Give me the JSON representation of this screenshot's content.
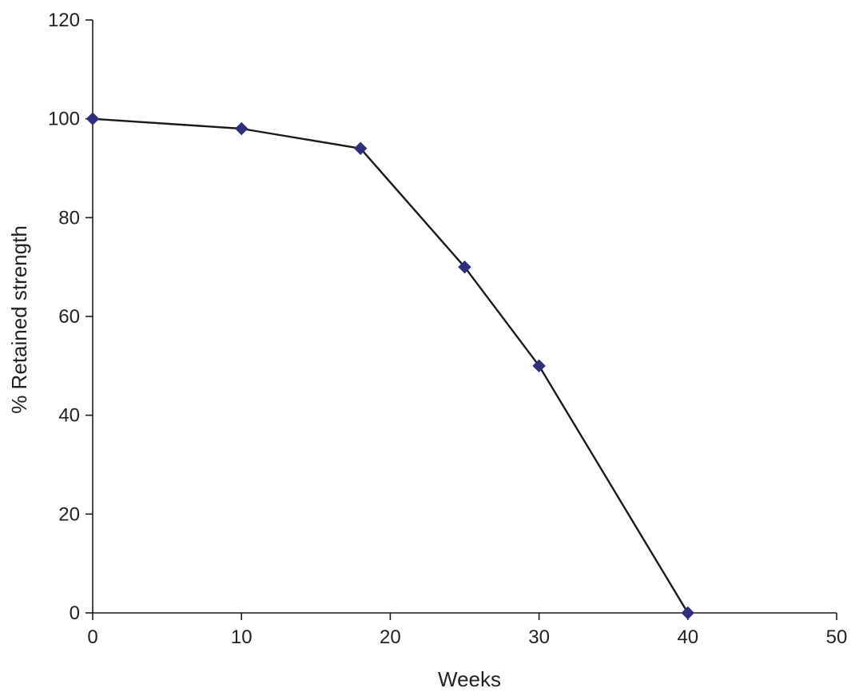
{
  "chart_data": {
    "type": "line",
    "xlabel": "Weeks",
    "ylabel": "% Retained strength",
    "xlim": [
      0,
      50
    ],
    "ylim": [
      0,
      120
    ],
    "xticks": [
      0,
      10,
      20,
      30,
      40,
      50
    ],
    "yticks": [
      0,
      20,
      40,
      60,
      80,
      100,
      120
    ],
    "grid": false,
    "series": [
      {
        "x": [
          0,
          10,
          18,
          25,
          30,
          40
        ],
        "y": [
          100,
          98,
          94,
          70,
          50,
          0
        ],
        "line_color": "#1a1a1a",
        "marker": "diamond",
        "marker_color": "#2e2e7a"
      }
    ]
  }
}
